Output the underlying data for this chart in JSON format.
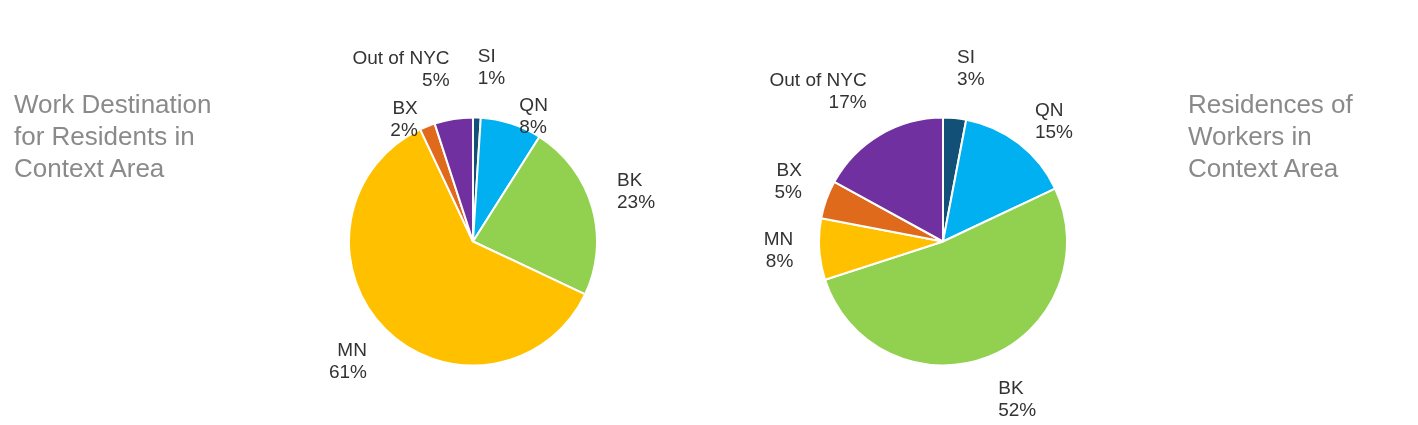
{
  "chart_data": [
    {
      "type": "pie",
      "title": "Work Destination for Residents in Context Area",
      "categories": [
        "SI",
        "QN",
        "BK",
        "MN",
        "BX",
        "Out of NYC"
      ],
      "values": [
        1,
        8,
        23,
        61,
        2,
        5
      ],
      "colors": [
        "#135078",
        "#00b0f0",
        "#92d050",
        "#ffc000",
        "#e06a1c",
        "#7030a0"
      ],
      "value_labels": [
        "1%",
        "8%",
        "23%",
        "61%",
        "2%",
        "5%"
      ],
      "legend": false
    },
    {
      "type": "pie",
      "title": "Residences of Workers in Context Area",
      "categories": [
        "SI",
        "QN",
        "BK",
        "MN",
        "BX",
        "Out of NYC"
      ],
      "values": [
        3,
        15,
        52,
        8,
        5,
        17
      ],
      "colors": [
        "#135078",
        "#00b0f0",
        "#92d050",
        "#ffc000",
        "#e06a1c",
        "#7030a0"
      ],
      "value_labels": [
        "3%",
        "15%",
        "52%",
        "8%",
        "5%",
        "17%"
      ],
      "legend": false
    }
  ]
}
